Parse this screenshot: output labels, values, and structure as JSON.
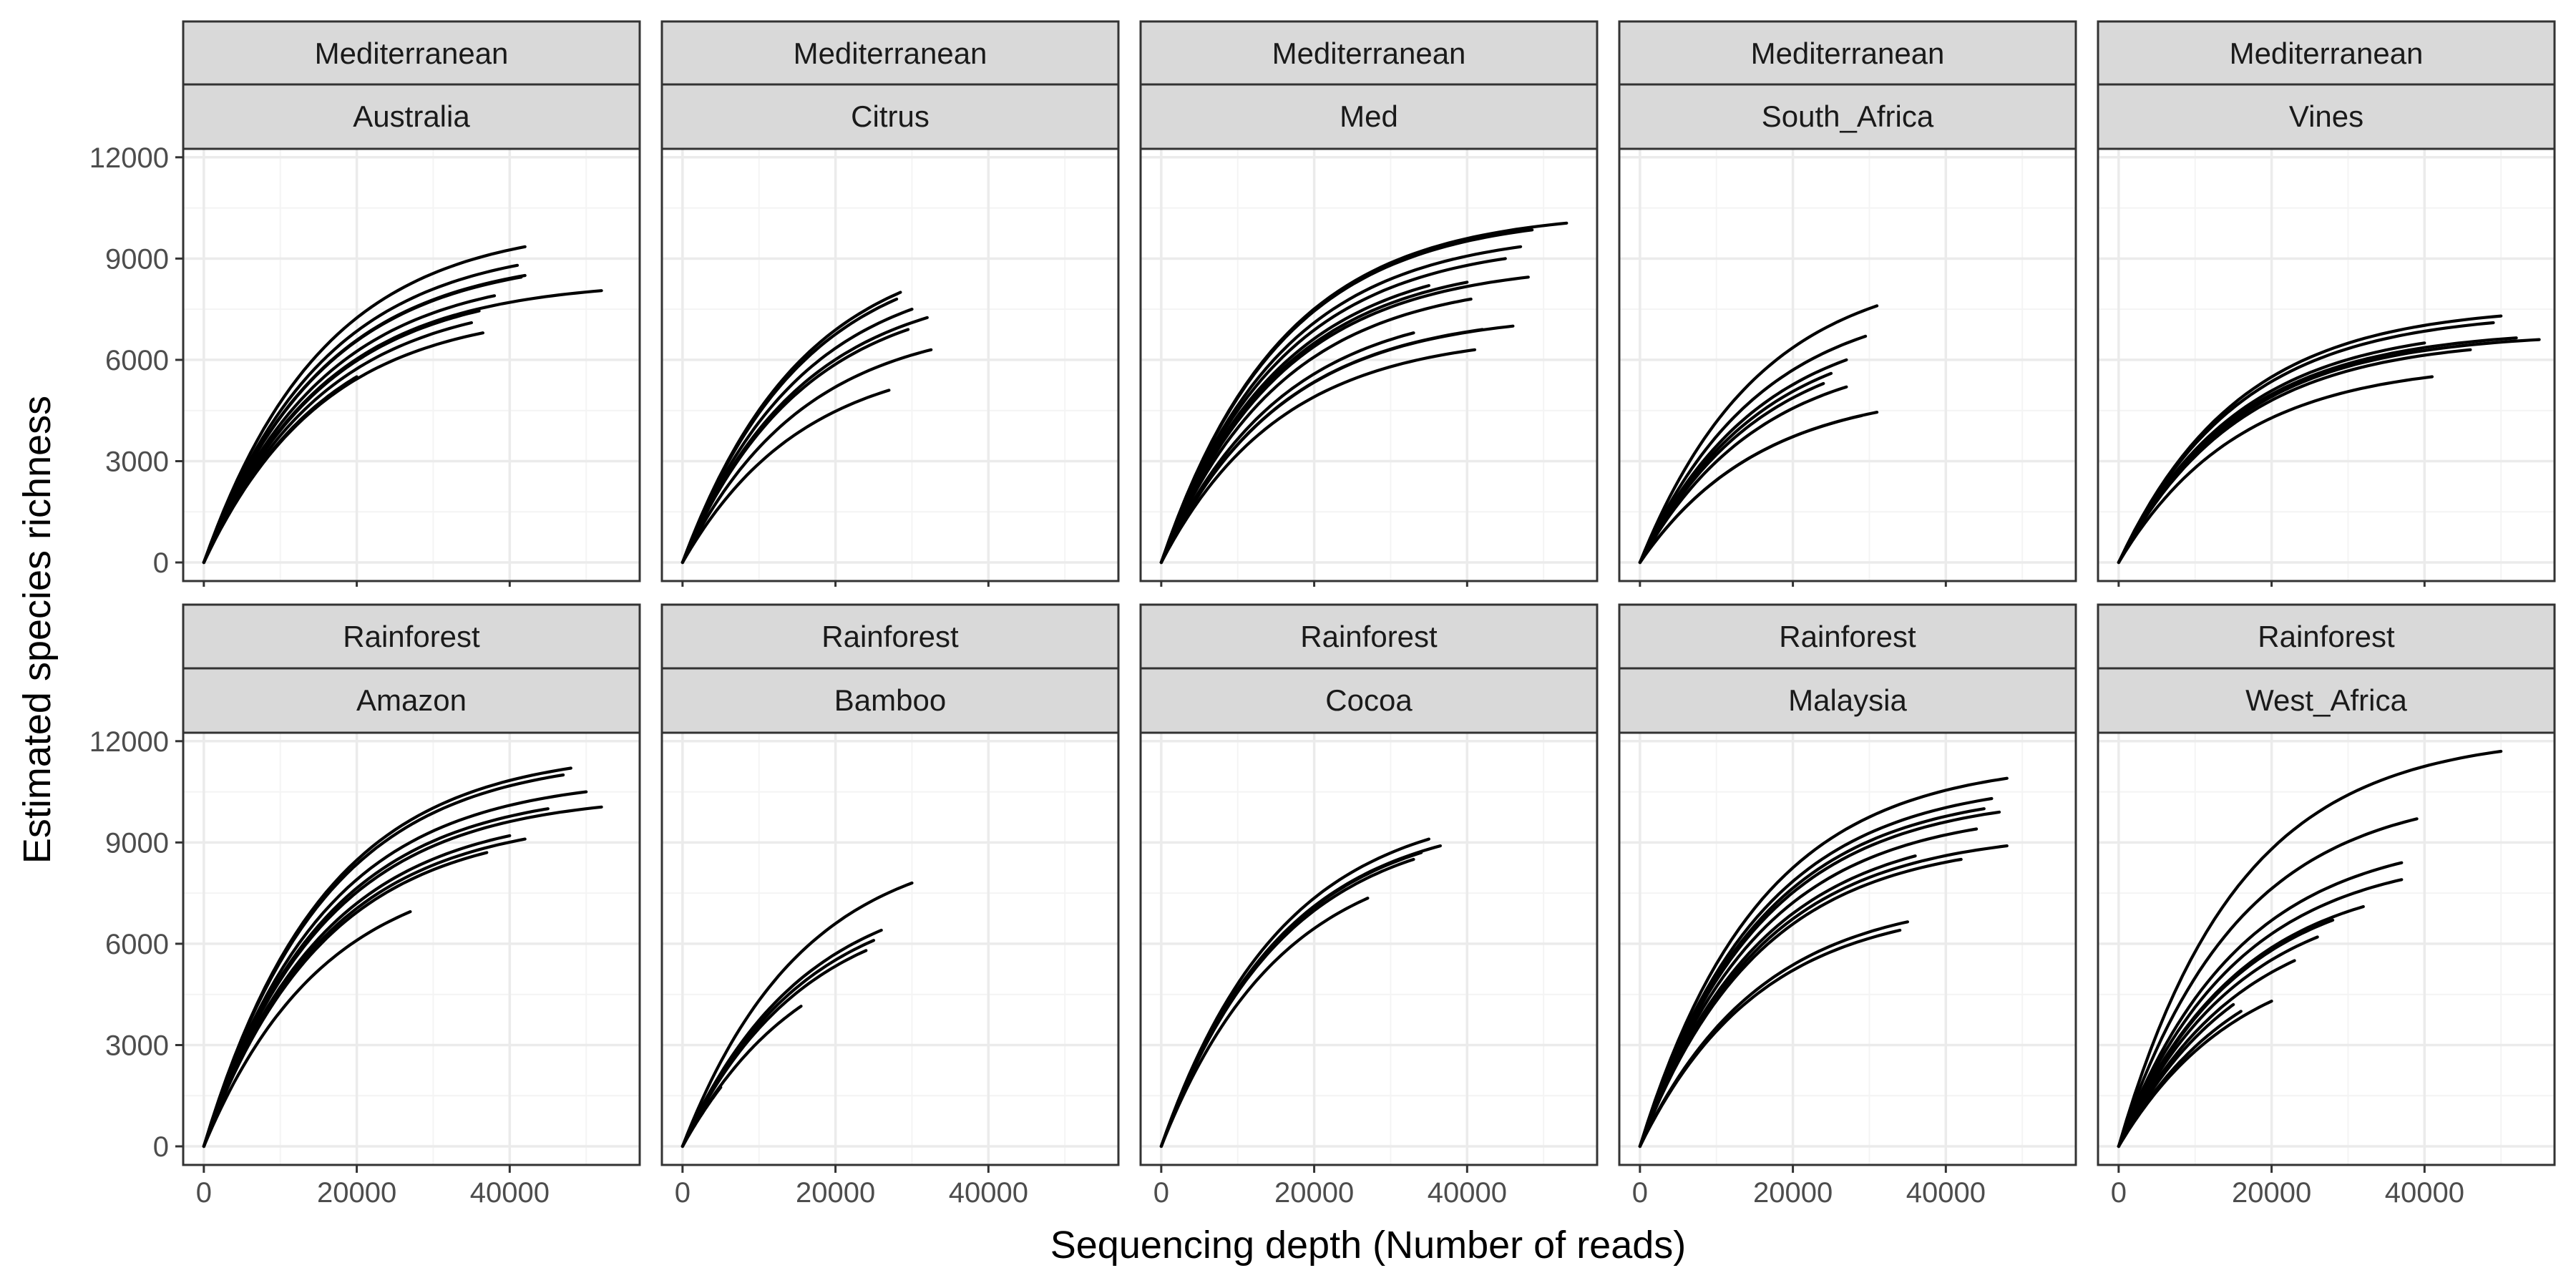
{
  "chart_data": {
    "type": "line",
    "xlabel": "Sequencing depth (Number of reads)",
    "ylabel": "Estimated species richness",
    "xlim": [
      -2700,
      57000
    ],
    "ylim": [
      -550,
      12250
    ],
    "x_ticks": [
      0,
      20000,
      40000
    ],
    "x_tick_labels": [
      "0",
      "20000",
      "40000"
    ],
    "y_ticks": [
      0,
      3000,
      6000,
      9000,
      12000
    ],
    "y_tick_labels": [
      "0",
      "3000",
      "6000",
      "9000",
      "12000"
    ],
    "grid": true,
    "legend": "none",
    "facet_rows": 2,
    "facet_cols": 5,
    "panels": [
      {
        "group": "Mediterranean",
        "site": "Australia",
        "curves": [
          [
            42000,
            9350
          ],
          [
            41000,
            8800
          ],
          [
            42000,
            8500
          ],
          [
            41500,
            8450
          ],
          [
            38000,
            7900
          ],
          [
            36000,
            7450
          ],
          [
            35000,
            7100
          ],
          [
            36500,
            6800
          ],
          [
            52000,
            8050
          ],
          [
            20000,
            5500
          ]
        ]
      },
      {
        "group": "Mediterranean",
        "site": "Citrus",
        "curves": [
          [
            28500,
            8000
          ],
          [
            28000,
            7800
          ],
          [
            30000,
            7500
          ],
          [
            32000,
            7250
          ],
          [
            29500,
            6900
          ],
          [
            32500,
            6300
          ],
          [
            27000,
            5100
          ]
        ]
      },
      {
        "group": "Mediterranean",
        "site": "Med",
        "curves": [
          [
            53000,
            10050
          ],
          [
            48500,
            9850
          ],
          [
            47000,
            9350
          ],
          [
            45000,
            9000
          ],
          [
            40000,
            8300
          ],
          [
            35000,
            8200
          ],
          [
            48000,
            8450
          ],
          [
            40500,
            7800
          ],
          [
            46000,
            7000
          ],
          [
            42000,
            6900
          ],
          [
            41000,
            6300
          ],
          [
            33000,
            6800
          ]
        ]
      },
      {
        "group": "Mediterranean",
        "site": "South_Africa",
        "curves": [
          [
            31000,
            7600
          ],
          [
            29500,
            6700
          ],
          [
            27000,
            6000
          ],
          [
            25000,
            5600
          ],
          [
            24000,
            5300
          ],
          [
            27000,
            5200
          ],
          [
            31000,
            4450
          ],
          [
            29000,
            4350
          ]
        ]
      },
      {
        "group": "Mediterranean",
        "site": "Vines",
        "curves": [
          [
            50000,
            7300
          ],
          [
            49000,
            7100
          ],
          [
            52000,
            6650
          ],
          [
            55000,
            6600
          ],
          [
            40000,
            6500
          ],
          [
            41000,
            5500
          ],
          [
            46000,
            6300
          ]
        ]
      },
      {
        "group": "Rainforest",
        "site": "Amazon",
        "curves": [
          [
            48000,
            11200
          ],
          [
            47000,
            11000
          ],
          [
            50000,
            10500
          ],
          [
            52000,
            10050
          ],
          [
            45000,
            10000
          ],
          [
            40000,
            9200
          ],
          [
            42000,
            9100
          ],
          [
            37000,
            8700
          ],
          [
            27000,
            6950
          ]
        ]
      },
      {
        "group": "Rainforest",
        "site": "Bamboo",
        "curves": [
          [
            30000,
            7800
          ],
          [
            26000,
            6400
          ],
          [
            25000,
            6100
          ],
          [
            24000,
            5800
          ],
          [
            15500,
            4150
          ],
          [
            5000,
            1750
          ]
        ]
      },
      {
        "group": "Rainforest",
        "site": "Cocoa",
        "curves": [
          [
            35000,
            9100
          ],
          [
            36500,
            8900
          ],
          [
            34000,
            8700
          ],
          [
            33000,
            8500
          ],
          [
            27000,
            7350
          ]
        ]
      },
      {
        "group": "Rainforest",
        "site": "Malaysia",
        "curves": [
          [
            48000,
            10900
          ],
          [
            46000,
            10300
          ],
          [
            45000,
            10000
          ],
          [
            47000,
            9900
          ],
          [
            44000,
            9400
          ],
          [
            48000,
            8900
          ],
          [
            42000,
            8500
          ],
          [
            35000,
            6650
          ],
          [
            34000,
            6400
          ],
          [
            36000,
            8600
          ]
        ]
      },
      {
        "group": "Rainforest",
        "site": "West_Africa",
        "curves": [
          [
            50000,
            11700
          ],
          [
            39000,
            9700
          ],
          [
            37000,
            8400
          ],
          [
            37000,
            7900
          ],
          [
            32000,
            7100
          ],
          [
            28000,
            6700
          ],
          [
            26000,
            6200
          ],
          [
            23000,
            5500
          ],
          [
            20000,
            4300
          ],
          [
            16000,
            4000
          ],
          [
            15000,
            4200
          ]
        ]
      }
    ]
  }
}
